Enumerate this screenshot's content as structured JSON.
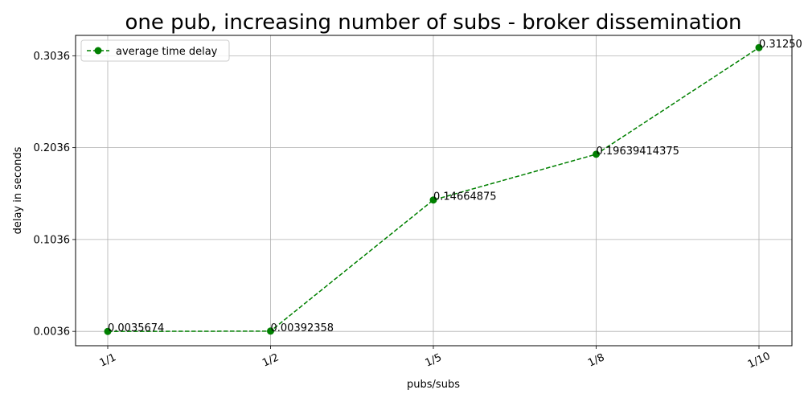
{
  "chart_data": {
    "type": "line",
    "title": "one pub, increasing number of subs - broker dissemination",
    "xlabel": "pubs/subs",
    "ylabel": "delay in seconds",
    "categories": [
      "1/1",
      "1/2",
      "1/5",
      "1/8",
      "1/10"
    ],
    "yticks": [
      "0.0036",
      "0.1036",
      "0.2036",
      "0.3036"
    ],
    "ylim": [
      -0.012,
      0.3258
    ],
    "grid": true,
    "legend_position": "top-left",
    "series": [
      {
        "name": "average time delay",
        "values": [
          0.0035674,
          0.00392358,
          0.14664875,
          0.19639414375,
          0.3125
        ],
        "labels": [
          "0.0035674",
          "0.00392358",
          "0.14664875",
          "0.19639414375",
          "0.31250"
        ],
        "color": "#008000",
        "line_style": "dashed",
        "marker": "circle"
      }
    ]
  }
}
